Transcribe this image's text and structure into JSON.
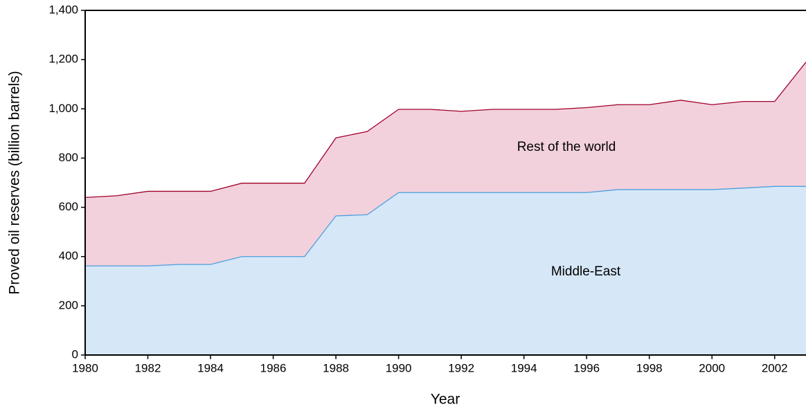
{
  "chart_data": {
    "type": "stacked_area",
    "x_label": "Year",
    "y_label": "Proved oil reserves (billion barrels)",
    "x": [
      1980,
      1981,
      1982,
      1983,
      1984,
      1985,
      1986,
      1987,
      1988,
      1989,
      1990,
      1991,
      1992,
      1993,
      1994,
      1995,
      1996,
      1997,
      1998,
      1999,
      2000,
      2001,
      2002,
      2003
    ],
    "series": [
      {
        "name": "Middle-East",
        "color": "#d6e7f8",
        "line_color": "#4a9fdc",
        "values": [
          362,
          362,
          362,
          368,
          368,
          400,
          400,
          400,
          565,
          570,
          660,
          660,
          660,
          660,
          660,
          660,
          660,
          672,
          672,
          672,
          672,
          678,
          685,
          685
        ]
      },
      {
        "name": "Rest of the world",
        "color": "#f2d1dd",
        "line_color": "#a0002a",
        "values": [
          278,
          285,
          303,
          297,
          297,
          298,
          298,
          298,
          317,
          338,
          338,
          338,
          330,
          338,
          338,
          338,
          345,
          345,
          345,
          363,
          345,
          352,
          345,
          505
        ]
      }
    ],
    "xlim": [
      1980,
      2003
    ],
    "xticks": [
      1980,
      1982,
      1984,
      1986,
      1988,
      1990,
      1992,
      1994,
      1996,
      1998,
      2000,
      2002
    ],
    "ylim": [
      0,
      1400
    ],
    "yticks": [
      0,
      200,
      400,
      600,
      800,
      {
        "value": 1000,
        "label": "1,000"
      },
      {
        "value": 1200,
        "label": "1,200"
      },
      {
        "value": 1400,
        "label": "1,400"
      }
    ],
    "grid": false
  }
}
